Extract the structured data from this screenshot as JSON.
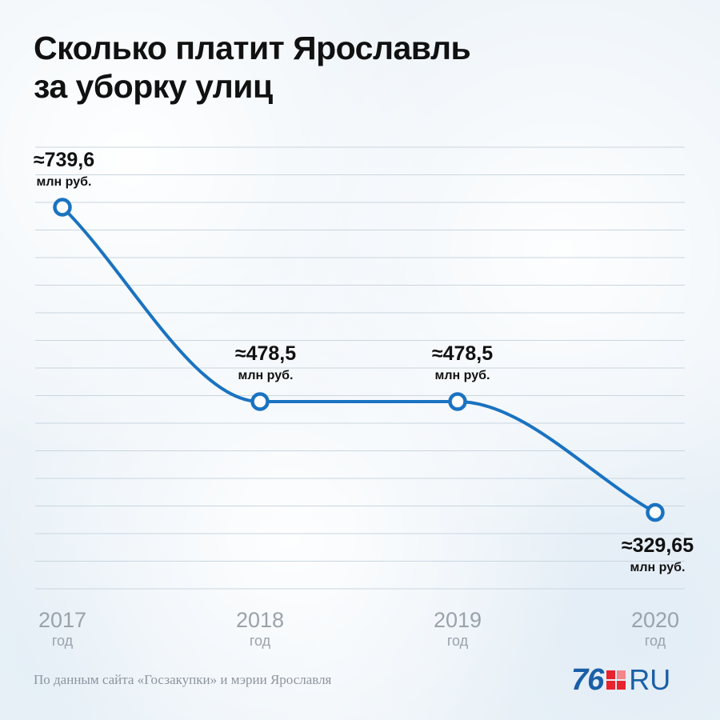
{
  "chart_data": {
    "type": "line",
    "title_lines": [
      "Сколько платит Ярославль",
      "за уборку улиц"
    ],
    "categories": [
      "2017",
      "2018",
      "2019",
      "2020"
    ],
    "x_sublabel": "год",
    "values": [
      739.6,
      478.5,
      478.5,
      329.65
    ],
    "data_labels": [
      "≈739,6",
      "≈478,5",
      "≈478,5",
      "≈329,65"
    ],
    "unit_label": "млн руб.",
    "ylim": [
      300,
      800
    ],
    "grid": true,
    "legend": "none",
    "color": "#1a73c1"
  },
  "source": "По данным сайта «Госзакупки» и мэрии Ярославля",
  "logo": {
    "number": "76",
    "suffix": "RU",
    "colors": {
      "text": "#1a5fa8",
      "square": "#e8232e"
    }
  }
}
